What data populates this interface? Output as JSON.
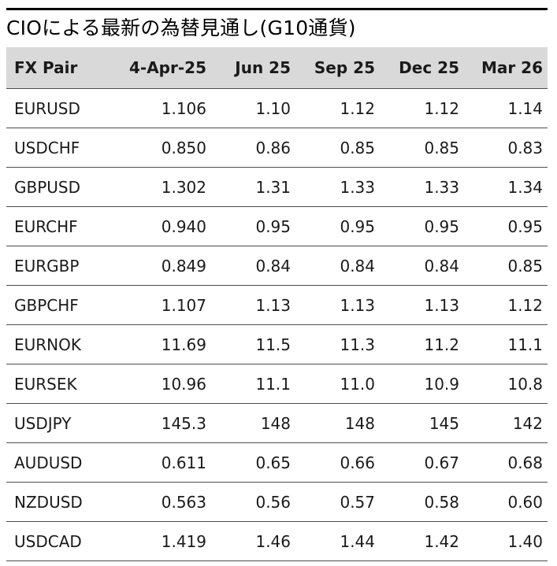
{
  "title": "CIOによる最新の為替見通し(G10通貨)",
  "table": {
    "headers": [
      "FX Pair",
      "4-Apr-25",
      "Jun 25",
      "Sep 25",
      "Dec 25",
      "Mar 26"
    ],
    "rows": [
      [
        "EURUSD",
        "1.106",
        "1.10",
        "1.12",
        "1.12",
        "1.14"
      ],
      [
        "USDCHF",
        "0.850",
        "0.86",
        "0.85",
        "0.85",
        "0.83"
      ],
      [
        "GBPUSD",
        "1.302",
        "1.31",
        "1.33",
        "1.33",
        "1.34"
      ],
      [
        "EURCHF",
        "0.940",
        "0.95",
        "0.95",
        "0.95",
        "0.95"
      ],
      [
        "EURGBP",
        "0.849",
        "0.84",
        "0.84",
        "0.84",
        "0.85"
      ],
      [
        "GBPCHF",
        "1.107",
        "1.13",
        "1.13",
        "1.13",
        "1.12"
      ],
      [
        "EURNOK",
        "11.69",
        "11.5",
        "11.3",
        "11.2",
        "11.1"
      ],
      [
        "EURSEK",
        "10.96",
        "11.1",
        "11.0",
        "10.9",
        "10.8"
      ],
      [
        "USDJPY",
        "145.3",
        "148",
        "148",
        "145",
        "142"
      ],
      [
        "AUDUSD",
        "0.611",
        "0.65",
        "0.66",
        "0.67",
        "0.68"
      ],
      [
        "NZDUSD",
        "0.563",
        "0.56",
        "0.57",
        "0.58",
        "0.60"
      ],
      [
        "USDCAD",
        "1.419",
        "1.46",
        "1.44",
        "1.42",
        "1.40"
      ]
    ]
  },
  "colors": {
    "header_bg": "#d9d9d9",
    "rule": "#000000",
    "row_divider": "#4d4d4d",
    "text": "#1a1a1a"
  }
}
